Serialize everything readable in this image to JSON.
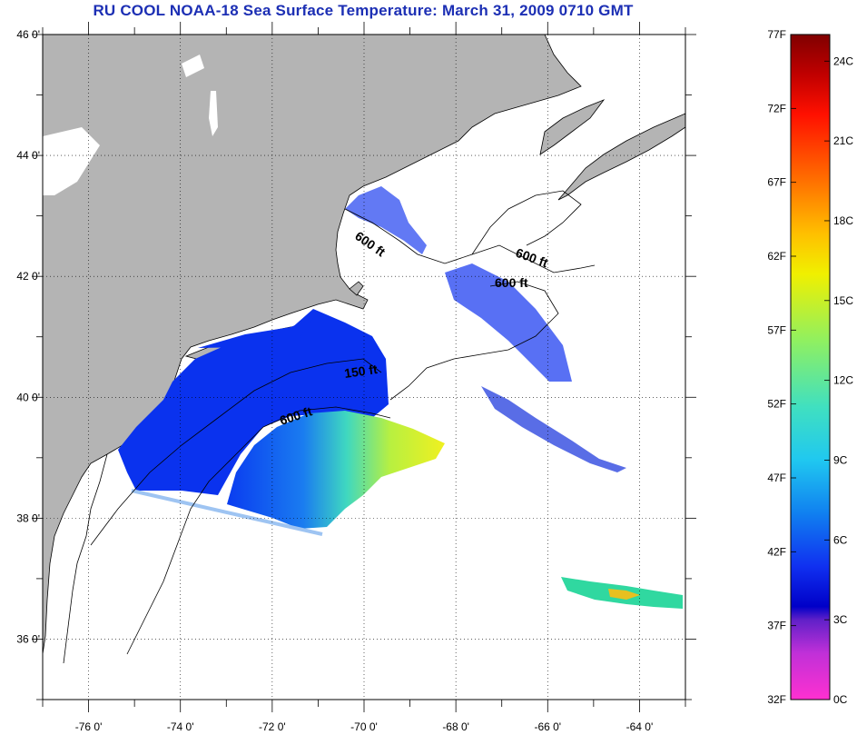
{
  "title": "RU COOL  NOAA-18  Sea Surface Temperature:  March 31, 2009 0710 GMT",
  "map": {
    "lon_range": [
      -77,
      -63
    ],
    "lat_range": [
      35,
      46
    ],
    "lon_ticks": [
      "-76 0'",
      "-74 0'",
      "-72 0'",
      "-70 0'",
      "-68 0'",
      "-66 0'",
      "-64 0'"
    ],
    "lat_ticks": [
      "46 0'",
      "44 0'",
      "42 0'",
      "40 0'",
      "38 0'",
      "36 0'"
    ],
    "contour_labels": [
      "600 ft",
      "600 ft",
      "600 ft",
      "150 ft",
      "600 ft"
    ],
    "colors": {
      "land": "#b4b4b4",
      "ocean": "#ffffff"
    }
  },
  "legend": {
    "f_labels": [
      "77F",
      "72F",
      "67F",
      "62F",
      "57F",
      "52F",
      "47F",
      "42F",
      "37F",
      "32F"
    ],
    "c_labels": [
      "24C",
      "21C",
      "18C",
      "15C",
      "12C",
      "9C",
      "6C",
      "3C",
      "0C"
    ]
  }
}
